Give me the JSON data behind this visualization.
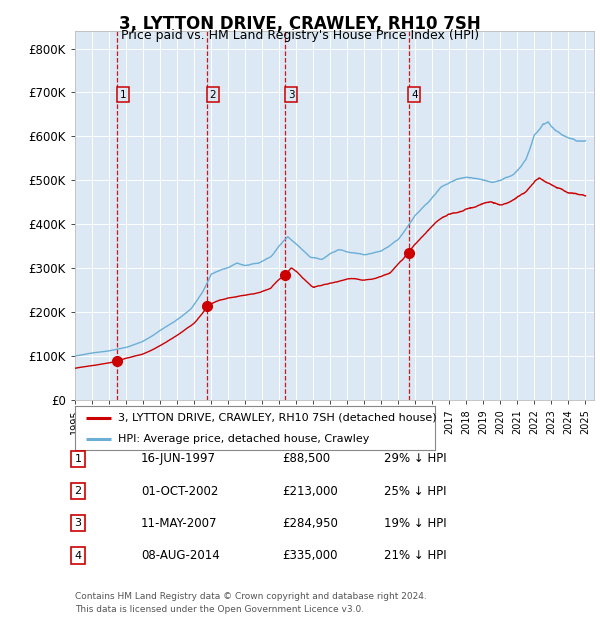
{
  "title": "3, LYTTON DRIVE, CRAWLEY, RH10 7SH",
  "subtitle": "Price paid vs. HM Land Registry's House Price Index (HPI)",
  "xlim_start": 1995.0,
  "xlim_end": 2025.5,
  "ylim_min": 0,
  "ylim_max": 840000,
  "yticks": [
    0,
    100000,
    200000,
    300000,
    400000,
    500000,
    600000,
    700000,
    800000
  ],
  "ytick_labels": [
    "£0",
    "£100K",
    "£200K",
    "£300K",
    "£400K",
    "£500K",
    "£600K",
    "£700K",
    "£800K"
  ],
  "background_color": "#ffffff",
  "plot_bg_color": "#dce9f5",
  "grid_color": "#ffffff",
  "hpi_line_color": "#6baed6",
  "price_line_color": "#cc0000",
  "sale_marker_color": "#cc0000",
  "vline_color": "#cc0000",
  "sale_box_color": "#cc0000",
  "sale_bg_color": "#dce9f5",
  "transactions": [
    {
      "num": 1,
      "date_label": "16-JUN-1997",
      "year": 1997.46,
      "price": 88500,
      "pct": "29% ↓ HPI"
    },
    {
      "num": 2,
      "date_label": "01-OCT-2002",
      "year": 2002.75,
      "price": 213000,
      "pct": "25% ↓ HPI"
    },
    {
      "num": 3,
      "date_label": "11-MAY-2007",
      "year": 2007.36,
      "price": 284950,
      "pct": "19% ↓ HPI"
    },
    {
      "num": 4,
      "date_label": "08-AUG-2014",
      "year": 2014.6,
      "price": 335000,
      "pct": "21% ↓ HPI"
    }
  ],
  "legend_red_label": "3, LYTTON DRIVE, CRAWLEY, RH10 7SH (detached house)",
  "legend_blue_label": "HPI: Average price, detached house, Crawley",
  "footnote1": "Contains HM Land Registry data © Crown copyright and database right 2024.",
  "footnote2": "This data is licensed under the Open Government Licence v3.0.",
  "xtick_years": [
    1995,
    1996,
    1997,
    1998,
    1999,
    2000,
    2001,
    2002,
    2003,
    2004,
    2005,
    2006,
    2007,
    2008,
    2009,
    2010,
    2011,
    2012,
    2013,
    2014,
    2015,
    2016,
    2017,
    2018,
    2019,
    2020,
    2021,
    2022,
    2023,
    2024,
    2025
  ],
  "hpi_anchors": [
    [
      1995.0,
      100000
    ],
    [
      1996.0,
      107000
    ],
    [
      1997.0,
      112000
    ],
    [
      1998.0,
      120000
    ],
    [
      1999.0,
      135000
    ],
    [
      2000.0,
      160000
    ],
    [
      2001.0,
      185000
    ],
    [
      2001.8,
      210000
    ],
    [
      2002.5,
      250000
    ],
    [
      2003.0,
      290000
    ],
    [
      2004.0,
      305000
    ],
    [
      2004.5,
      315000
    ],
    [
      2005.0,
      310000
    ],
    [
      2005.8,
      315000
    ],
    [
      2006.5,
      330000
    ],
    [
      2007.0,
      355000
    ],
    [
      2007.5,
      375000
    ],
    [
      2008.0,
      360000
    ],
    [
      2008.8,
      330000
    ],
    [
      2009.5,
      325000
    ],
    [
      2010.0,
      340000
    ],
    [
      2010.5,
      350000
    ],
    [
      2011.0,
      345000
    ],
    [
      2012.0,
      340000
    ],
    [
      2013.0,
      348000
    ],
    [
      2014.0,
      375000
    ],
    [
      2015.0,
      430000
    ],
    [
      2015.8,
      460000
    ],
    [
      2016.5,
      490000
    ],
    [
      2017.0,
      500000
    ],
    [
      2017.5,
      510000
    ],
    [
      2018.0,
      515000
    ],
    [
      2018.8,
      510000
    ],
    [
      2019.5,
      505000
    ],
    [
      2020.0,
      510000
    ],
    [
      2020.8,
      525000
    ],
    [
      2021.5,
      560000
    ],
    [
      2022.0,
      620000
    ],
    [
      2022.5,
      645000
    ],
    [
      2022.8,
      650000
    ],
    [
      2023.0,
      640000
    ],
    [
      2023.5,
      625000
    ],
    [
      2024.0,
      615000
    ],
    [
      2024.5,
      605000
    ],
    [
      2025.0,
      605000
    ]
  ],
  "price_anchors": [
    [
      1995.0,
      72000
    ],
    [
      1996.0,
      78000
    ],
    [
      1997.0,
      85000
    ],
    [
      1997.46,
      88500
    ],
    [
      1998.0,
      95000
    ],
    [
      1999.0,
      105000
    ],
    [
      2000.0,
      125000
    ],
    [
      2001.0,
      148000
    ],
    [
      2002.0,
      175000
    ],
    [
      2002.75,
      213000
    ],
    [
      2003.0,
      220000
    ],
    [
      2003.5,
      230000
    ],
    [
      2004.0,
      235000
    ],
    [
      2004.5,
      238000
    ],
    [
      2005.0,
      240000
    ],
    [
      2005.5,
      242000
    ],
    [
      2006.0,
      248000
    ],
    [
      2006.5,
      255000
    ],
    [
      2007.0,
      275000
    ],
    [
      2007.36,
      284950
    ],
    [
      2007.7,
      302000
    ],
    [
      2008.0,
      295000
    ],
    [
      2008.5,
      275000
    ],
    [
      2009.0,
      258000
    ],
    [
      2009.5,
      262000
    ],
    [
      2010.0,
      268000
    ],
    [
      2010.5,
      272000
    ],
    [
      2011.0,
      278000
    ],
    [
      2011.5,
      278000
    ],
    [
      2012.0,
      275000
    ],
    [
      2012.5,
      277000
    ],
    [
      2013.0,
      282000
    ],
    [
      2013.5,
      290000
    ],
    [
      2014.0,
      310000
    ],
    [
      2014.6,
      335000
    ],
    [
      2015.0,
      355000
    ],
    [
      2015.5,
      375000
    ],
    [
      2016.0,
      395000
    ],
    [
      2016.5,
      410000
    ],
    [
      2017.0,
      420000
    ],
    [
      2017.5,
      425000
    ],
    [
      2018.0,
      432000
    ],
    [
      2018.5,
      438000
    ],
    [
      2019.0,
      445000
    ],
    [
      2019.5,
      448000
    ],
    [
      2020.0,
      445000
    ],
    [
      2020.5,
      450000
    ],
    [
      2021.0,
      462000
    ],
    [
      2021.5,
      472000
    ],
    [
      2022.0,
      495000
    ],
    [
      2022.3,
      505000
    ],
    [
      2022.5,
      502000
    ],
    [
      2023.0,
      490000
    ],
    [
      2023.5,
      482000
    ],
    [
      2024.0,
      472000
    ],
    [
      2024.5,
      468000
    ],
    [
      2025.0,
      465000
    ]
  ]
}
